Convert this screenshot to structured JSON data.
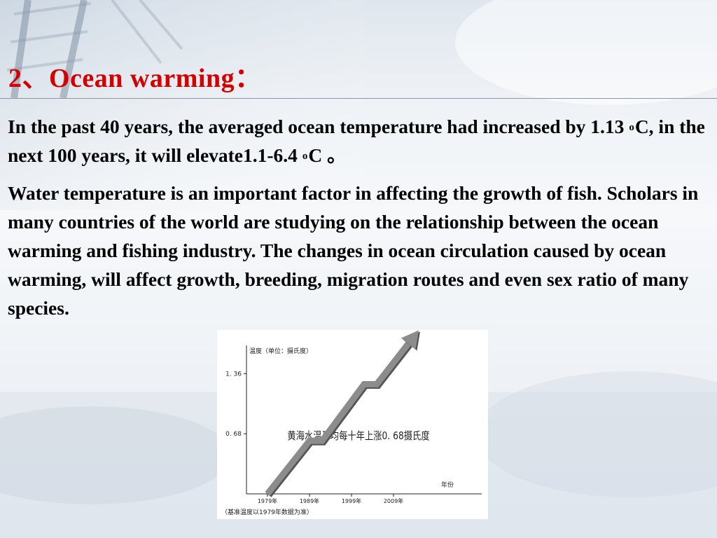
{
  "slide": {
    "title": "2、Ocean warming：",
    "paragraph1": {
      "text_a": "In the past 40 years, the averaged ocean temperature had increased by 1.13 ",
      "sup_a": "o",
      "text_b": "C, in the next 100 years, it will elevate1.1-6.4 ",
      "sup_b": "o",
      "text_c": "C 。"
    },
    "paragraph2": "Water temperature is an important factor in affecting the growth of fish. Scholars in many countries of the world are studying on the relationship between the ocean warming and fishing industry. The changes in ocean circulation caused by ocean warming, will affect growth, breeding, migration routes and even sex ratio of many species."
  },
  "colors": {
    "title": "#d40000",
    "body_text": "#000000",
    "line": "#8c8c8c"
  },
  "chart_data": {
    "type": "line",
    "ylabel": "温度（单位：摄氏度）",
    "xlabel": "年份",
    "x_tick_labels": [
      "1979年",
      "1989年",
      "1999年",
      "2009年"
    ],
    "y_tick_labels": [
      "1. 36",
      "0. 68"
    ],
    "y_ticks": [
      1.36,
      0.68
    ],
    "ylim": [
      0,
      1.68
    ],
    "x": [
      1979,
      1989,
      1992,
      2002,
      2005,
      2015
    ],
    "values": [
      0,
      0.6,
      0.6,
      1.24,
      1.24,
      1.85
    ],
    "ends_with_arrow": true,
    "annotation": "黄海水温平均每十年上涨0. 68摄氏度",
    "footnote": "（基准温度以1979年数据为准）"
  }
}
